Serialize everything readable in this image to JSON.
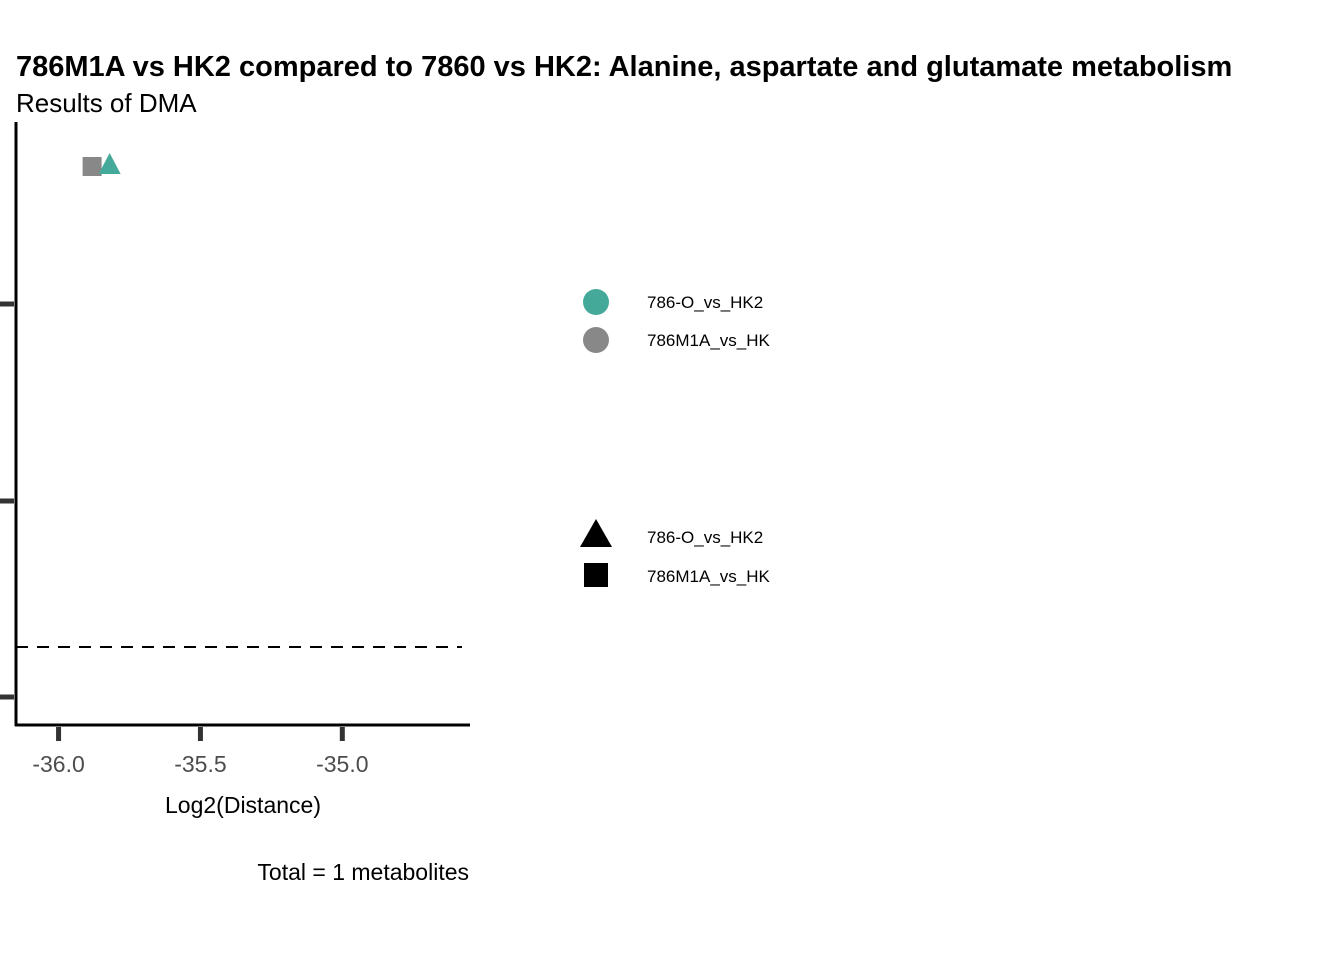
{
  "chart_data": {
    "type": "scatter",
    "title": "786M1A vs HK2 compared to 7860 vs HK2: Alanine, aspartate and glutamate metabolism",
    "subtitle": "Results of DMA",
    "xlabel": "Log2(Distance)",
    "ylabel": "",
    "caption": "Total = 1 metabolites",
    "xlim": [
      -36.15,
      -34.55
    ],
    "x_ticks": [
      {
        "value": -36.0,
        "label": "-36.0"
      },
      {
        "value": -35.5,
        "label": "-35.5"
      },
      {
        "value": -35.0,
        "label": "-35.0"
      }
    ],
    "y_ticks_count": 3,
    "threshold": {
      "style": "dashed"
    },
    "points": [
      {
        "series": "786M1A_vs_HK",
        "x": -35.88,
        "shape": "square",
        "color": "#888888"
      },
      {
        "series": "786-O_vs_HK2",
        "x": -35.82,
        "shape": "triangle",
        "color": "#45A99A"
      }
    ],
    "legend_color": [
      {
        "label": "786-O_vs_HK2",
        "color": "#45A99A"
      },
      {
        "label": "786M1A_vs_HK",
        "color": "#888888"
      }
    ],
    "legend_shape": [
      {
        "label": "786-O_vs_HK2",
        "shape": "triangle"
      },
      {
        "label": "786M1A_vs_HK",
        "shape": "square"
      }
    ]
  }
}
